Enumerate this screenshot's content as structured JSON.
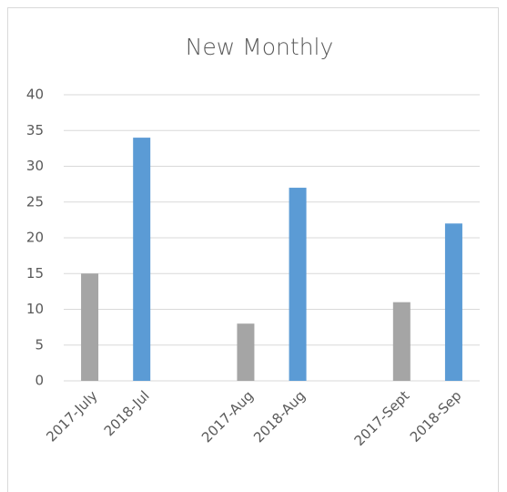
{
  "chart_data": {
    "type": "bar",
    "title": "New Monthly",
    "categories": [
      "2017-July",
      "2018-Jul",
      null,
      "2017-Aug",
      "2018-Aug",
      null,
      "2017-Sept",
      "2018-Sep"
    ],
    "values": [
      15,
      34,
      null,
      8,
      27,
      null,
      11,
      22
    ],
    "colors": [
      "#a5a5a5",
      "#5b9bd5",
      null,
      "#a5a5a5",
      "#5b9bd5",
      null,
      "#a5a5a5",
      "#5b9bd5"
    ],
    "ylim": [
      0,
      40
    ],
    "yticks": [
      0,
      5,
      10,
      15,
      20,
      25,
      30,
      35,
      40
    ],
    "grid": true
  }
}
